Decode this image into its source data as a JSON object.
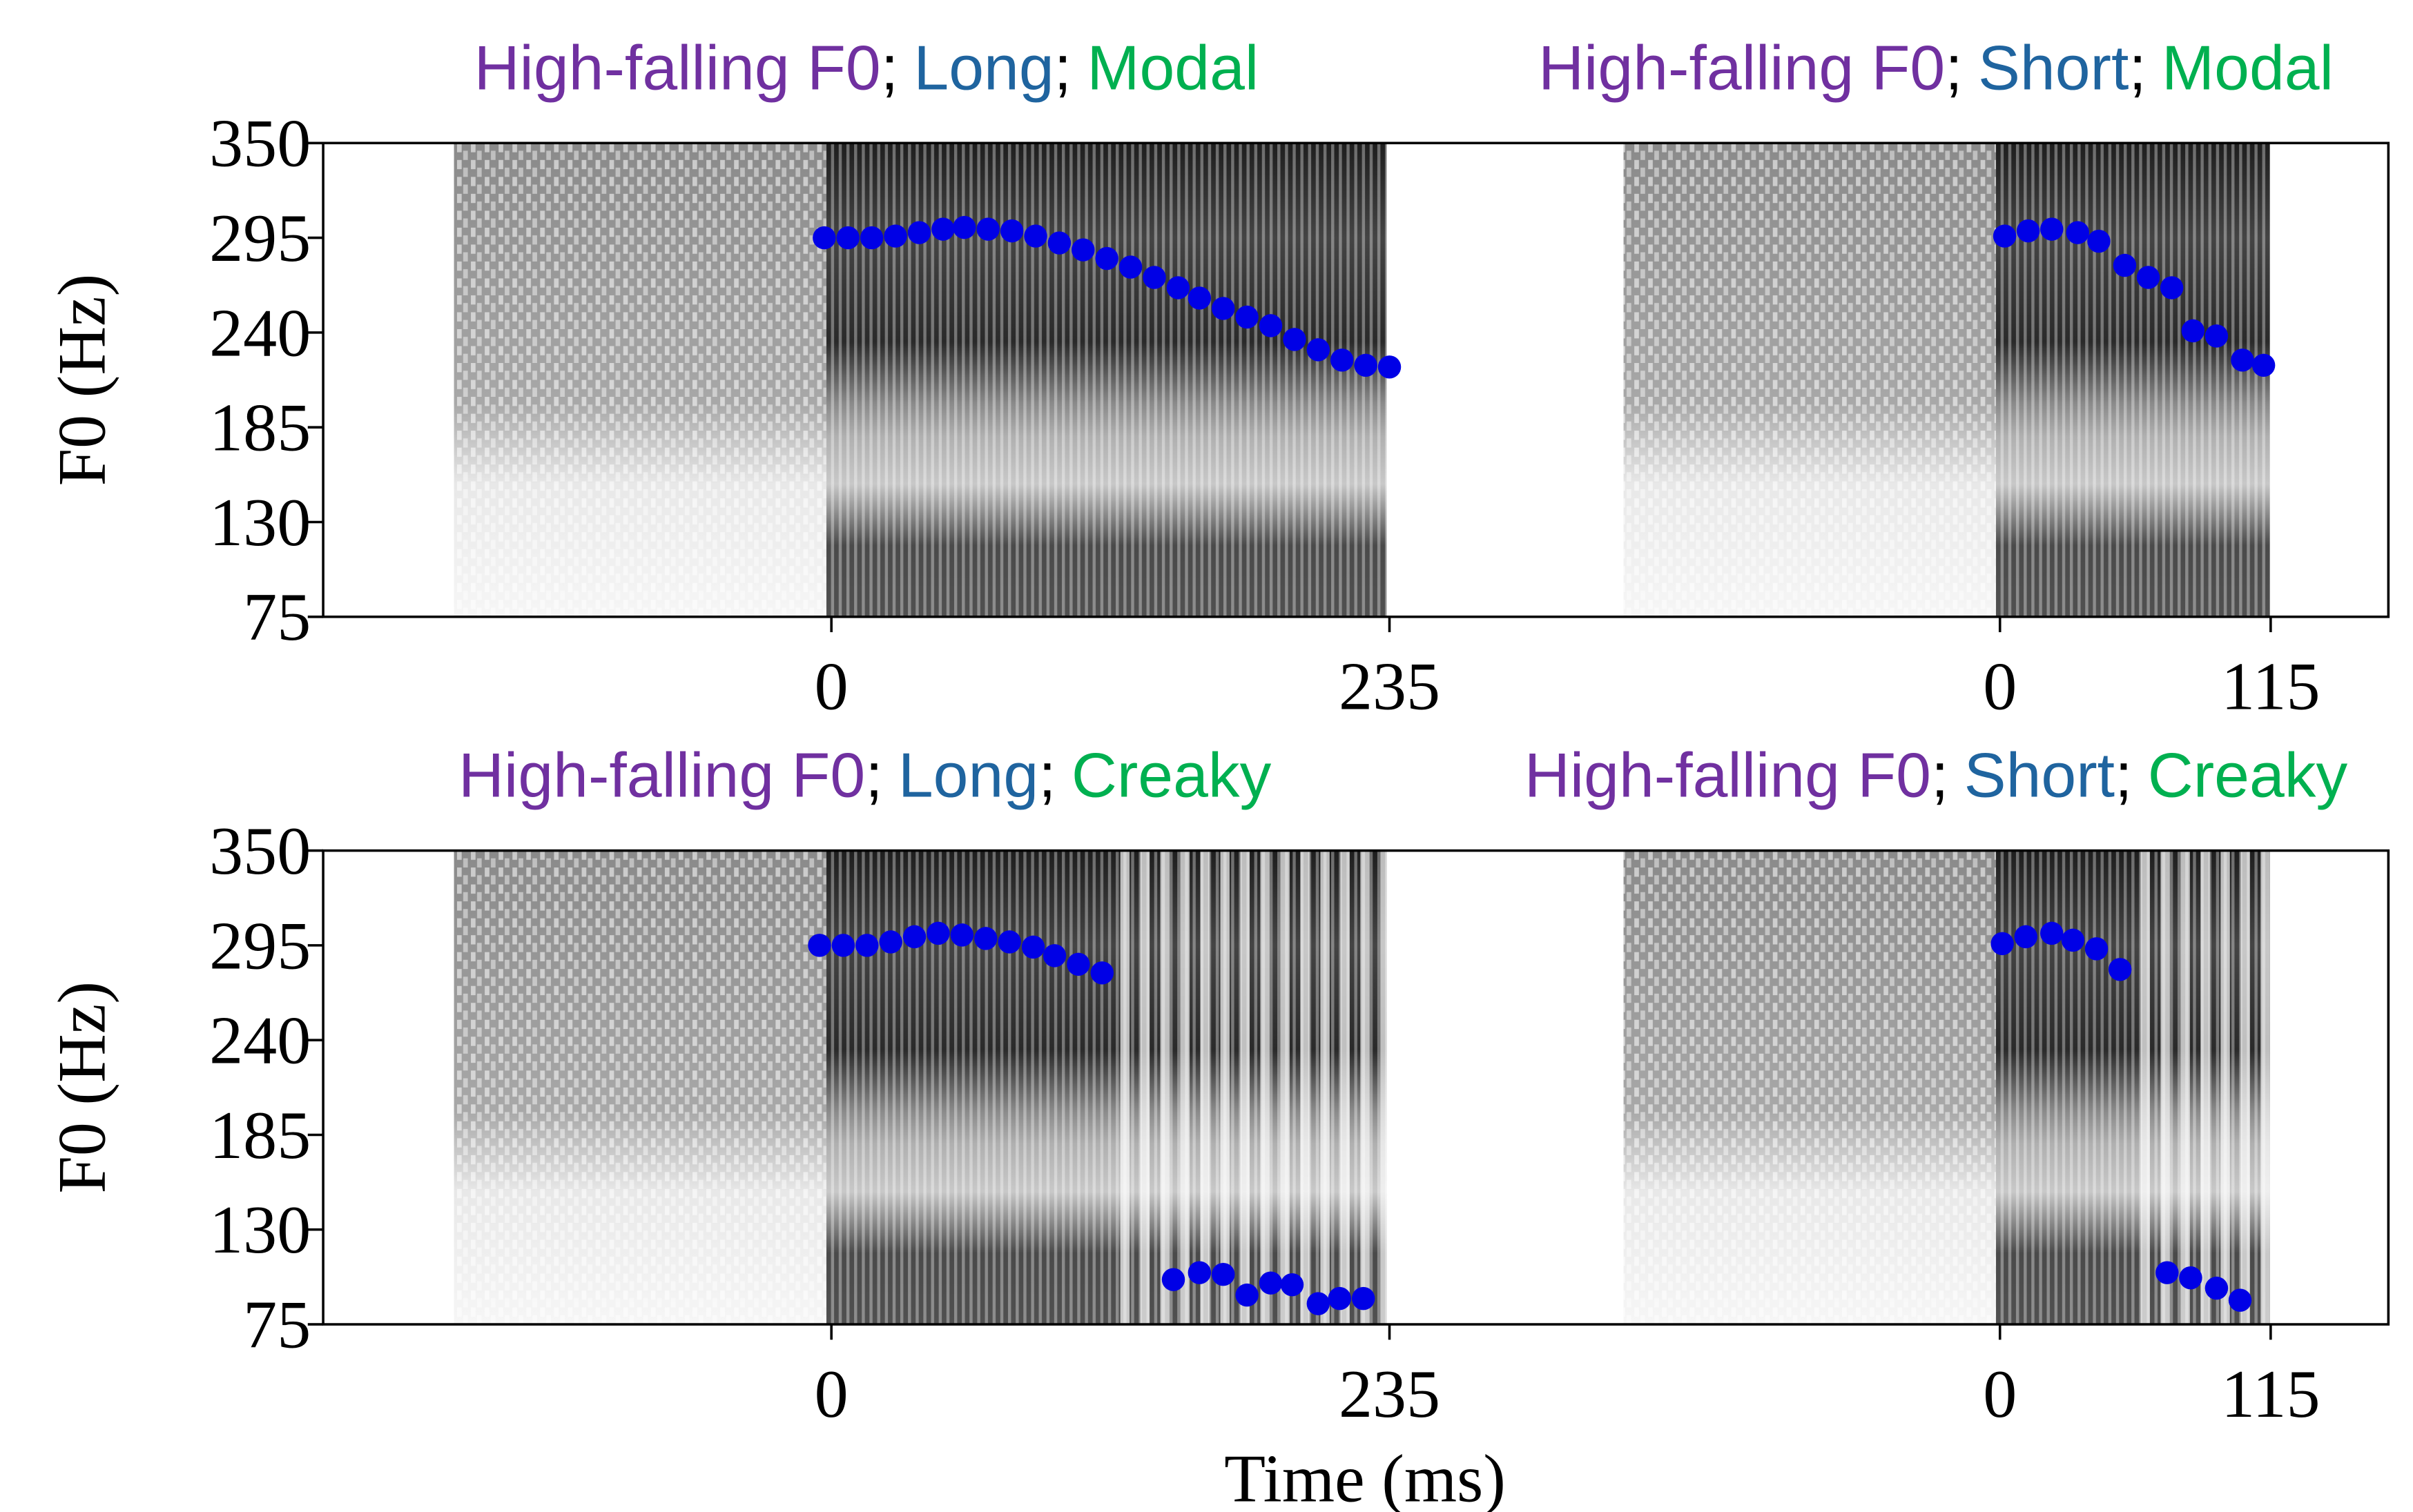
{
  "chart_data": [
    {
      "type": "scatter",
      "title": [
        {
          "text": "High-falling F0",
          "color": "#7030a0"
        },
        {
          "text": ";",
          "color": "#000000"
        },
        {
          "text": "Long",
          "color": "#1f649f"
        },
        {
          "text": ";",
          "color": "#000000"
        },
        {
          "text": "Modal",
          "color": "#00b050"
        }
      ],
      "ylabel": "F0 (Hz)",
      "xlim": [
        -214,
        272
      ],
      "xticks": [
        0,
        235
      ],
      "ylim": [
        75,
        350
      ],
      "yticks": [
        75,
        130,
        185,
        240,
        295,
        350
      ],
      "color": "#0000e6",
      "x": [
        -3,
        7,
        17,
        27,
        37,
        47,
        56,
        66,
        76,
        86,
        96,
        106,
        116,
        126,
        136,
        146,
        155,
        165,
        175,
        185,
        195,
        205,
        215,
        225,
        235
      ],
      "values": [
        295,
        295,
        295,
        296,
        298,
        300,
        301,
        300,
        299,
        296,
        292,
        288,
        283,
        278,
        272,
        266,
        260,
        254,
        249,
        244,
        236,
        230,
        224,
        221,
        220
      ]
    },
    {
      "type": "scatter",
      "title": [
        {
          "text": "High-falling F0",
          "color": "#7030a0"
        },
        {
          "text": ";",
          "color": "#000000"
        },
        {
          "text": "Short",
          "color": "#1f649f"
        },
        {
          "text": ";",
          "color": "#000000"
        },
        {
          "text": "Modal",
          "color": "#00b050"
        }
      ],
      "xlim": [
        -222,
        165
      ],
      "xticks": [
        0,
        115
      ],
      "ylim": [
        75,
        350
      ],
      "color": "#0000e6",
      "x": [
        2,
        12,
        22,
        33,
        42,
        53,
        63,
        73,
        82,
        92,
        103,
        112
      ],
      "values": [
        296,
        299,
        300,
        298,
        293,
        279,
        272,
        266,
        241,
        238,
        224,
        221
      ]
    },
    {
      "type": "scatter",
      "title": [
        {
          "text": "High-falling F0",
          "color": "#7030a0"
        },
        {
          "text": ";",
          "color": "#000000"
        },
        {
          "text": "Long",
          "color": "#1f649f"
        },
        {
          "text": ";",
          "color": "#000000"
        },
        {
          "text": "Creaky",
          "color": "#00b050"
        }
      ],
      "ylabel": "F0 (Hz)",
      "xlabel": "Time (ms)",
      "xlim": [
        -214,
        272
      ],
      "xticks": [
        0,
        235
      ],
      "ylim": [
        75,
        350
      ],
      "yticks": [
        75,
        130,
        185,
        240,
        295,
        350
      ],
      "color": "#0000e6",
      "x": [
        -5,
        5,
        15,
        25,
        35,
        45,
        55,
        65,
        75,
        85,
        94,
        104,
        114,
        144,
        155,
        165,
        175,
        185,
        194,
        205,
        214,
        224
      ],
      "values": [
        295,
        295,
        295,
        297,
        300,
        302,
        301,
        299,
        297,
        294,
        289,
        284,
        279,
        101,
        105,
        104,
        92,
        99,
        98,
        87,
        90,
        90
      ]
    },
    {
      "type": "scatter",
      "title": [
        {
          "text": "High-falling F0",
          "color": "#7030a0"
        },
        {
          "text": ";",
          "color": "#000000"
        },
        {
          "text": "Short",
          "color": "#1f649f"
        },
        {
          "text": ";",
          "color": "#000000"
        },
        {
          "text": "Creaky",
          "color": "#00b050"
        }
      ],
      "xlim": [
        -222,
        165
      ],
      "xticks": [
        0,
        115
      ],
      "ylim": [
        75,
        350
      ],
      "color": "#0000e6",
      "x": [
        1,
        11,
        22,
        31,
        41,
        51,
        71,
        81,
        92,
        102
      ],
      "values": [
        296,
        300,
        302,
        298,
        293,
        281,
        105,
        102,
        96,
        89
      ]
    }
  ]
}
